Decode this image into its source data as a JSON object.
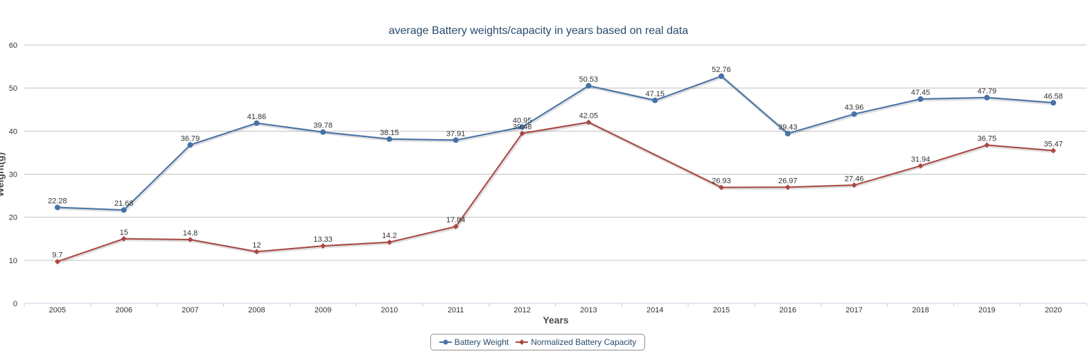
{
  "chart_data": {
    "type": "line",
    "title": "average Battery weights/capacity in years based on real data",
    "xlabel": "Years",
    "ylabel": "Weight(g)",
    "categories": [
      "2005",
      "2006",
      "2007",
      "2008",
      "2009",
      "2010",
      "2011",
      "2012",
      "2013",
      "2014",
      "2015",
      "2016",
      "2017",
      "2018",
      "2019",
      "2020"
    ],
    "ylim": [
      0,
      60
    ],
    "yticks": [
      0,
      10,
      20,
      30,
      40,
      50,
      60
    ],
    "grid": true,
    "legend_position": "bottom-center",
    "series": [
      {
        "name": "Battery Weight",
        "color": "#4572a7",
        "marker": "circle",
        "values": [
          22.28,
          21.68,
          36.79,
          41.86,
          39.78,
          38.15,
          37.91,
          40.95,
          50.53,
          47.15,
          52.76,
          39.43,
          43.96,
          47.45,
          47.79,
          46.58
        ]
      },
      {
        "name": "Normalized Battery Capacity",
        "color": "#aa4643",
        "marker": "diamond",
        "values": [
          9.7,
          15,
          14.8,
          12,
          13.33,
          14.2,
          17.84,
          39.48,
          42.05,
          null,
          26.93,
          26.97,
          27.46,
          31.94,
          36.75,
          35.47
        ]
      }
    ]
  }
}
